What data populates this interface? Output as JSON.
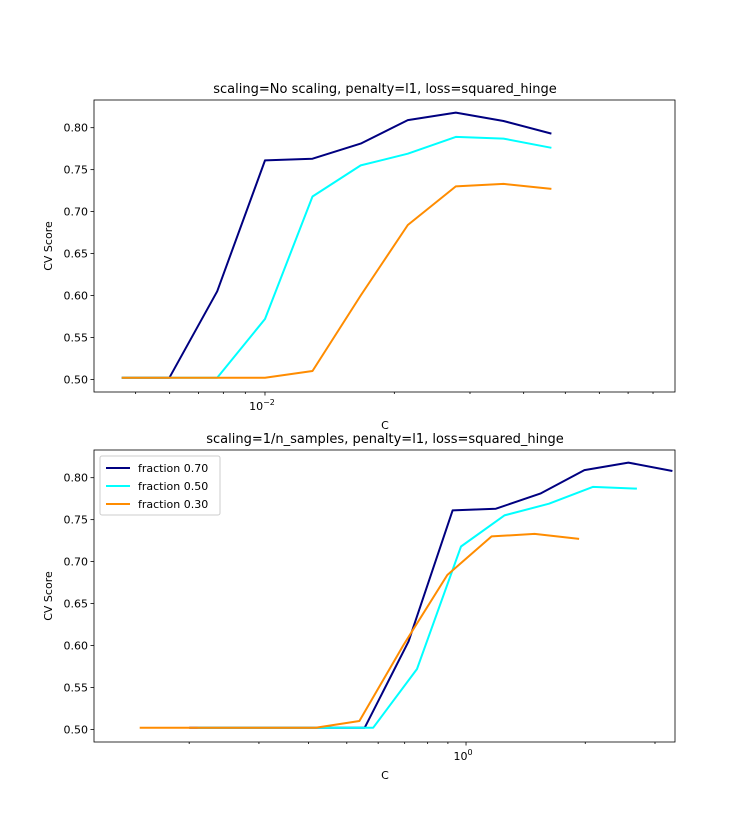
{
  "chart_data": [
    {
      "type": "line",
      "title": "scaling=No scaling, penalty=l1, loss=squared_hinge",
      "xlabel": "C",
      "ylabel": "CV Score",
      "xscale": "log",
      "xlim": [
        0.004,
        0.09
      ],
      "ylim": [
        0.485,
        0.833
      ],
      "yticks": [
        "0.50",
        "0.55",
        "0.60",
        "0.65",
        "0.70",
        "0.75",
        "0.80"
      ],
      "xticks": [
        {
          "base": "10",
          "exp": "−2"
        }
      ],
      "legend": null,
      "grid": false,
      "x": [
        0.00464,
        0.00599,
        0.00774,
        0.01,
        0.0129,
        0.0167,
        0.0215,
        0.0278,
        0.0359,
        0.0464
      ],
      "series": [
        {
          "name": "fraction 0.70",
          "color": "#000080",
          "values": [
            0.502,
            0.502,
            0.605,
            0.761,
            0.763,
            0.781,
            0.809,
            0.818,
            0.808,
            0.793
          ]
        },
        {
          "name": "fraction 0.50",
          "color": "#00ffff",
          "values": [
            0.502,
            0.502,
            0.502,
            0.572,
            0.718,
            0.755,
            0.769,
            0.789,
            0.787,
            0.776
          ]
        },
        {
          "name": "fraction 0.30",
          "color": "#ff8c00",
          "values": [
            0.502,
            0.502,
            0.502,
            0.502,
            0.51,
            0.6,
            0.684,
            0.73,
            0.733,
            0.727
          ]
        }
      ]
    },
    {
      "type": "line",
      "title": "scaling=1/n_samples, penalty=l1, loss=squared_hinge",
      "xlabel": "C",
      "ylabel": "CV Score",
      "xscale": "log",
      "xlim": [
        0.115,
        3.37
      ],
      "ylim": [
        0.485,
        0.833
      ],
      "yticks": [
        "0.50",
        "0.55",
        "0.60",
        "0.65",
        "0.70",
        "0.75",
        "0.80"
      ],
      "xticks": [
        {
          "base": "10",
          "exp": "0"
        }
      ],
      "legend": "upper left",
      "grid": false,
      "series": [
        {
          "name": "fraction 0.70",
          "color": "#000080",
          "x": [
            0.2,
            0.258,
            0.333,
            0.43,
            0.555,
            0.716,
            0.925,
            1.19,
            1.54,
            1.99,
            2.57,
            3.32
          ],
          "values": [
            0.502,
            0.502,
            0.502,
            0.502,
            0.502,
            0.605,
            0.761,
            0.763,
            0.781,
            0.809,
            0.818,
            0.808
          ]
        },
        {
          "name": "fraction 0.50",
          "color": "#00ffff",
          "x": [
            0.21,
            0.271,
            0.35,
            0.452,
            0.583,
            0.752,
            0.971,
            1.25,
            1.62,
            2.09,
            2.7
          ],
          "values": [
            0.502,
            0.502,
            0.502,
            0.502,
            0.502,
            0.572,
            0.718,
            0.755,
            0.769,
            0.789,
            0.787
          ]
        },
        {
          "name": "fraction 0.30",
          "color": "#ff8c00",
          "x": [
            0.15,
            0.194,
            0.25,
            0.323,
            0.417,
            0.538,
            0.694,
            0.897,
            1.16,
            1.49,
            1.93
          ],
          "values": [
            0.502,
            0.502,
            0.502,
            0.502,
            0.502,
            0.51,
            0.6,
            0.684,
            0.73,
            0.733,
            0.727
          ]
        }
      ]
    }
  ]
}
